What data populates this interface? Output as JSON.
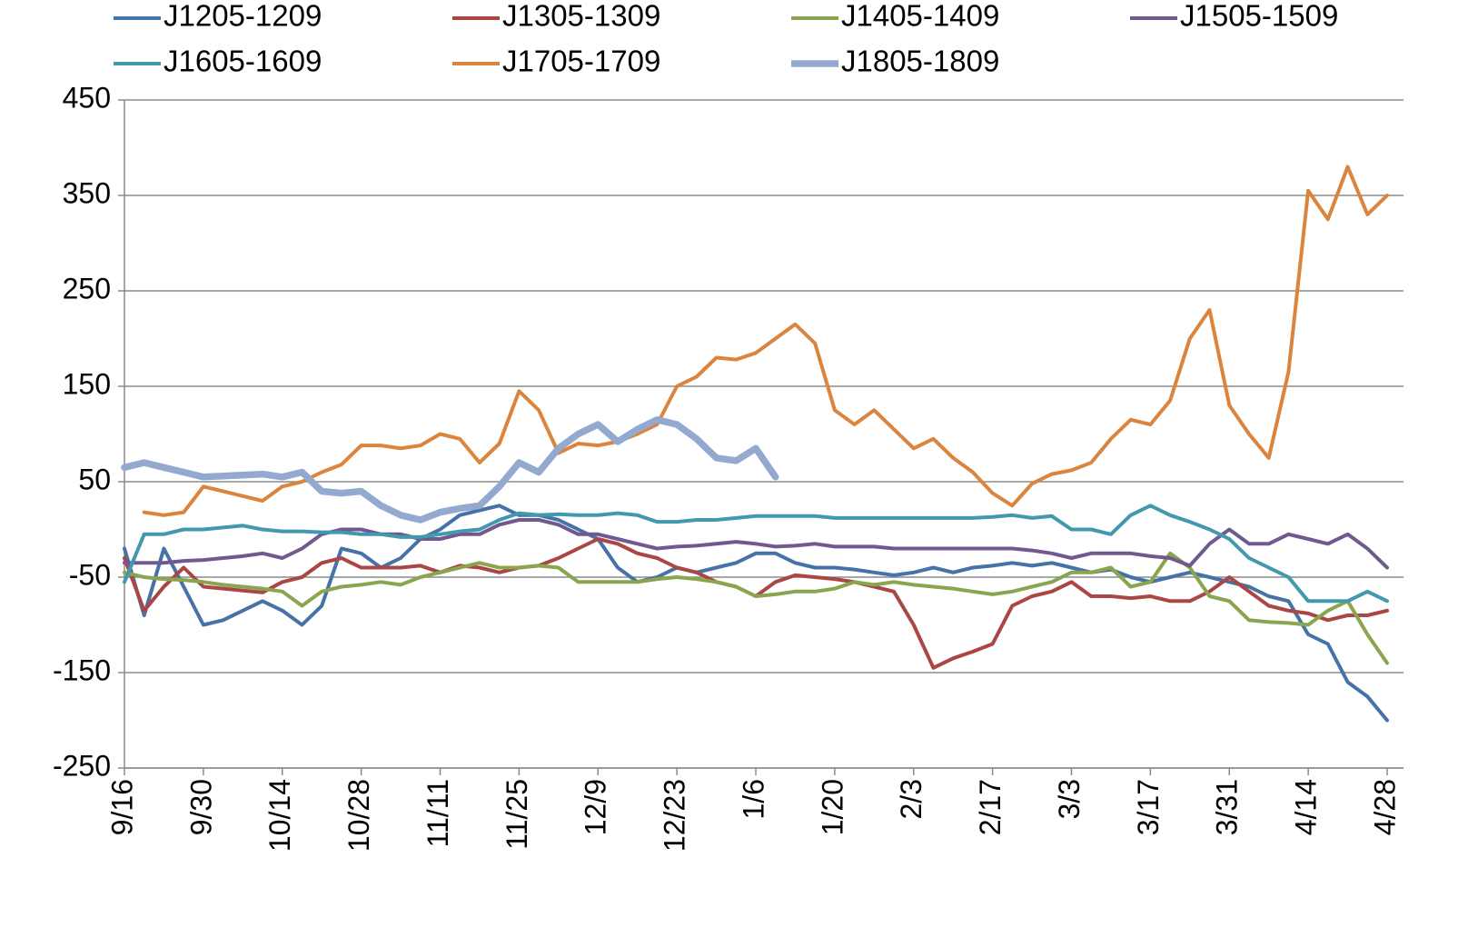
{
  "chart_data": {
    "type": "line",
    "x": [
      "9/16",
      null,
      null,
      null,
      "9/30",
      null,
      null,
      null,
      "10/14",
      null,
      null,
      null,
      "10/28",
      null,
      null,
      null,
      "11/11",
      null,
      null,
      null,
      "11/25",
      null,
      null,
      null,
      "12/9",
      null,
      null,
      null,
      "12/23",
      null,
      null,
      null,
      "1/6",
      null,
      null,
      null,
      "1/20",
      null,
      null,
      null,
      "2/3",
      null,
      null,
      null,
      "2/17",
      null,
      null,
      null,
      "3/3",
      null,
      null,
      null,
      "3/17",
      null,
      null,
      null,
      "3/31",
      null,
      null,
      null,
      "4/14",
      null,
      null,
      null,
      "4/28"
    ],
    "ylim": [
      -250,
      450
    ],
    "yticks": [
      -250,
      -150,
      -50,
      50,
      150,
      250,
      350,
      450
    ],
    "grid": true,
    "legend": "top",
    "series": [
      {
        "name": "J1205-1209",
        "color": "#4572a7",
        "values": [
          -20,
          -90,
          -20,
          -60,
          -100,
          -95,
          -85,
          -75,
          -85,
          -100,
          -80,
          -20,
          -25,
          -40,
          -30,
          -10,
          0,
          15,
          20,
          25,
          15,
          15,
          10,
          0,
          -10,
          -40,
          -55,
          -50,
          -40,
          -45,
          -40,
          -35,
          -25,
          -25,
          -35,
          -40,
          -40,
          -42,
          -45,
          -48,
          -45,
          -40,
          -45,
          -40,
          -38,
          -35,
          -38,
          -35,
          -40,
          -45,
          -42,
          -50,
          -55,
          -50,
          -45,
          -50,
          -55,
          -60,
          -70,
          -75,
          -110,
          -120,
          -160,
          -175,
          -200
        ]
      },
      {
        "name": "J1305-1309",
        "color": "#aa4643",
        "values": [
          -30,
          -85,
          -60,
          -40,
          -60,
          -62,
          -64,
          -66,
          -55,
          -50,
          -35,
          -30,
          -40,
          -40,
          -40,
          -38,
          -45,
          -38,
          -40,
          -45,
          -40,
          -38,
          -30,
          -20,
          -10,
          -15,
          -25,
          -30,
          -40,
          -45,
          -55,
          -60,
          -70,
          -55,
          -48,
          -50,
          -52,
          -55,
          -60,
          -65,
          -100,
          -145,
          -135,
          -128,
          -120,
          -80,
          -70,
          -65,
          -55,
          -70,
          -70,
          -72,
          -70,
          -75,
          -75,
          -65,
          -50,
          -65,
          -80,
          -85,
          -88,
          -95,
          -90,
          -90,
          -85
        ]
      },
      {
        "name": "J1405-1409",
        "color": "#89a54e",
        "values": [
          -45,
          -50,
          -52,
          -53,
          -55,
          -58,
          -60,
          -62,
          -65,
          -80,
          -65,
          -60,
          -58,
          -55,
          -58,
          -50,
          -45,
          -40,
          -35,
          -40,
          -40,
          -38,
          -40,
          -55,
          -55,
          -55,
          -55,
          -52,
          -50,
          -52,
          -55,
          -60,
          -70,
          -68,
          -65,
          -65,
          -62,
          -55,
          -58,
          -55,
          -58,
          -60,
          -62,
          -65,
          -68,
          -65,
          -60,
          -55,
          -45,
          -45,
          -40,
          -60,
          -55,
          -25,
          -40,
          -70,
          -75,
          -95,
          -97,
          -98,
          -100,
          -85,
          -75,
          -110,
          -140
        ]
      },
      {
        "name": "J1505-1509",
        "color": "#71588f",
        "values": [
          -35,
          -35,
          -35,
          -33,
          -32,
          -30,
          -28,
          -25,
          -30,
          -20,
          -5,
          0,
          0,
          -5,
          -5,
          -10,
          -10,
          -5,
          -5,
          5,
          10,
          10,
          5,
          -5,
          -5,
          -10,
          -15,
          -20,
          -18,
          -17,
          -15,
          -13,
          -15,
          -18,
          -17,
          -15,
          -18,
          -18,
          -18,
          -20,
          -20,
          -20,
          -20,
          -20,
          -20,
          -20,
          -22,
          -25,
          -30,
          -25,
          -25,
          -25,
          -28,
          -30,
          -38,
          -15,
          0,
          -15,
          -15,
          -5,
          -10,
          -15,
          -5,
          -20,
          -40
        ]
      },
      {
        "name": "J1605-1609",
        "color": "#4198af",
        "values": [
          -55,
          -5,
          -5,
          0,
          0,
          2,
          4,
          0,
          -2,
          -2,
          -3,
          -3,
          -5,
          -5,
          -8,
          -8,
          -5,
          -2,
          0,
          10,
          17,
          15,
          16,
          15,
          15,
          17,
          15,
          8,
          8,
          10,
          10,
          12,
          14,
          14,
          14,
          14,
          12,
          12,
          12,
          12,
          12,
          12,
          12,
          12,
          13,
          15,
          12,
          14,
          0,
          0,
          -5,
          15,
          25,
          15,
          8,
          0,
          -10,
          -30,
          -40,
          -50,
          -75,
          -75,
          -75,
          -65,
          -75
        ]
      },
      {
        "name": "J1705-1709",
        "color": "#db843d",
        "values": [
          null,
          18,
          15,
          18,
          45,
          40,
          35,
          30,
          45,
          50,
          60,
          68,
          88,
          88,
          85,
          88,
          100,
          95,
          70,
          90,
          145,
          125,
          80,
          90,
          88,
          92,
          100,
          110,
          150,
          160,
          180,
          178,
          185,
          200,
          215,
          195,
          125,
          110,
          125,
          105,
          85,
          95,
          75,
          60,
          38,
          25,
          48,
          58,
          62,
          70,
          95,
          115,
          110,
          135,
          200,
          230,
          130,
          100,
          75,
          165,
          355,
          325,
          380,
          330,
          350
        ]
      },
      {
        "name": "J1805-1809",
        "color": "#93a9cf",
        "values": [
          65,
          70,
          65,
          60,
          55,
          56,
          57,
          58,
          55,
          60,
          40,
          38,
          40,
          25,
          15,
          10,
          18,
          22,
          25,
          45,
          70,
          60,
          85,
          100,
          110,
          92,
          105,
          115,
          110,
          95,
          75,
          72,
          85,
          55,
          null,
          null,
          null,
          null,
          null,
          null,
          null,
          null,
          null,
          null,
          null,
          null,
          null,
          null,
          null,
          null,
          null,
          null,
          null,
          null,
          null,
          null,
          null,
          null,
          null,
          null,
          null,
          null,
          null,
          null,
          null
        ]
      }
    ]
  }
}
